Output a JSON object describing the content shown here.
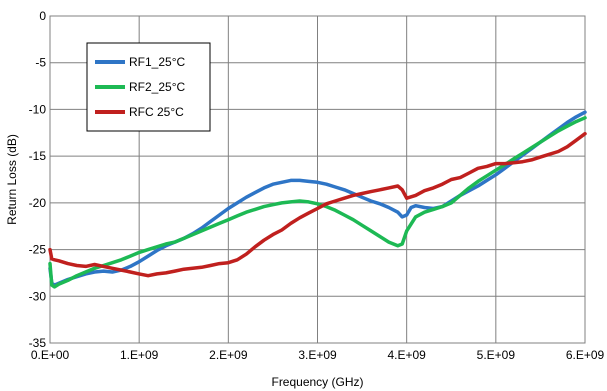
{
  "chart_data": {
    "type": "line",
    "title": "",
    "xlabel": "Frequency (GHz)",
    "ylabel": "Return Loss (dB)",
    "xlim": [
      0,
      6000000000
    ],
    "ylim": [
      -35,
      0
    ],
    "x_ticks": [
      0,
      1000000000,
      2000000000,
      3000000000,
      4000000000,
      5000000000,
      6000000000
    ],
    "x_tick_labels": [
      "0.E+00",
      "1.E+09",
      "2.E+09",
      "3.E+09",
      "4.E+09",
      "5.E+09",
      "6.E+09"
    ],
    "y_ticks": [
      0,
      -5,
      -10,
      -15,
      -20,
      -25,
      -30,
      -35
    ],
    "y_tick_labels": [
      "0",
      "-5",
      "-10",
      "-15",
      "-20",
      "-25",
      "-30",
      "-35"
    ],
    "grid": true,
    "legend": "top-left",
    "series": [
      {
        "name": "RF1_25°C",
        "color": "#2E75C6",
        "x": [
          0,
          20000000,
          50000000,
          100000000,
          200000000,
          300000000,
          400000000,
          500000000,
          600000000,
          700000000,
          800000000,
          900000000,
          1000000000,
          1100000000,
          1200000000,
          1300000000,
          1400000000,
          1500000000,
          1600000000,
          1700000000,
          1800000000,
          1900000000,
          2000000000,
          2100000000,
          2200000000,
          2300000000,
          2400000000,
          2500000000,
          2600000000,
          2700000000,
          2800000000,
          2900000000,
          3000000000,
          3100000000,
          3200000000,
          3300000000,
          3400000000,
          3500000000,
          3600000000,
          3700000000,
          3800000000,
          3900000000,
          3950000000,
          4000000000,
          4050000000,
          4100000000,
          4200000000,
          4300000000,
          4400000000,
          4500000000,
          4600000000,
          4700000000,
          4800000000,
          4900000000,
          5000000000,
          5100000000,
          5200000000,
          5300000000,
          5400000000,
          5500000000,
          5600000000,
          5700000000,
          5800000000,
          5900000000,
          6000000000
        ],
        "y": [
          -27.0,
          -28.6,
          -28.8,
          -28.6,
          -28.2,
          -27.9,
          -27.6,
          -27.4,
          -27.3,
          -27.4,
          -27.2,
          -26.8,
          -26.3,
          -25.7,
          -25.1,
          -24.6,
          -24.2,
          -23.8,
          -23.3,
          -22.7,
          -22.0,
          -21.3,
          -20.6,
          -20.0,
          -19.4,
          -18.9,
          -18.4,
          -18.0,
          -17.8,
          -17.6,
          -17.6,
          -17.7,
          -17.8,
          -18.0,
          -18.3,
          -18.6,
          -19.0,
          -19.4,
          -19.8,
          -20.1,
          -20.5,
          -21.0,
          -21.5,
          -21.3,
          -20.5,
          -20.3,
          -20.5,
          -20.6,
          -20.4,
          -19.8,
          -19.2,
          -18.7,
          -18.2,
          -17.6,
          -17.0,
          -16.3,
          -15.6,
          -14.9,
          -14.2,
          -13.5,
          -12.8,
          -12.1,
          -11.4,
          -10.8,
          -10.3
        ]
      },
      {
        "name": "RF2_25°C",
        "color": "#1DB954",
        "x": [
          0,
          20000000,
          50000000,
          100000000,
          200000000,
          300000000,
          400000000,
          500000000,
          600000000,
          700000000,
          800000000,
          900000000,
          1000000000,
          1100000000,
          1200000000,
          1300000000,
          1400000000,
          1500000000,
          1600000000,
          1700000000,
          1800000000,
          1900000000,
          2000000000,
          2100000000,
          2200000000,
          2300000000,
          2400000000,
          2500000000,
          2600000000,
          2700000000,
          2800000000,
          2900000000,
          3000000000,
          3100000000,
          3200000000,
          3300000000,
          3400000000,
          3500000000,
          3600000000,
          3700000000,
          3800000000,
          3900000000,
          3950000000,
          4000000000,
          4100000000,
          4200000000,
          4300000000,
          4400000000,
          4500000000,
          4600000000,
          4700000000,
          4800000000,
          4900000000,
          5000000000,
          5100000000,
          5200000000,
          5300000000,
          5400000000,
          5500000000,
          5600000000,
          5700000000,
          5800000000,
          5900000000,
          6000000000
        ],
        "y": [
          -26.5,
          -28.8,
          -29.0,
          -28.7,
          -28.3,
          -27.8,
          -27.4,
          -27.0,
          -26.7,
          -26.4,
          -26.1,
          -25.7,
          -25.3,
          -25.0,
          -24.7,
          -24.4,
          -24.2,
          -23.8,
          -23.4,
          -23.0,
          -22.6,
          -22.2,
          -21.8,
          -21.4,
          -21.0,
          -20.7,
          -20.4,
          -20.2,
          -20.0,
          -19.9,
          -19.8,
          -19.9,
          -20.1,
          -20.4,
          -20.8,
          -21.3,
          -21.8,
          -22.4,
          -23.0,
          -23.6,
          -24.2,
          -24.6,
          -24.4,
          -23.0,
          -21.5,
          -21.0,
          -20.7,
          -20.4,
          -20.0,
          -19.2,
          -18.4,
          -17.7,
          -17.1,
          -16.5,
          -15.9,
          -15.3,
          -14.7,
          -14.1,
          -13.5,
          -12.9,
          -12.3,
          -11.8,
          -11.3,
          -10.9
        ]
      },
      {
        "name": "RFC 25°C",
        "color": "#C0201E",
        "x": [
          0,
          20000000,
          50000000,
          100000000,
          200000000,
          300000000,
          400000000,
          500000000,
          600000000,
          700000000,
          800000000,
          900000000,
          1000000000,
          1100000000,
          1200000000,
          1300000000,
          1400000000,
          1500000000,
          1600000000,
          1700000000,
          1800000000,
          1900000000,
          2000000000,
          2100000000,
          2200000000,
          2300000000,
          2400000000,
          2500000000,
          2600000000,
          2700000000,
          2800000000,
          2900000000,
          3000000000,
          3100000000,
          3200000000,
          3300000000,
          3400000000,
          3500000000,
          3600000000,
          3700000000,
          3800000000,
          3900000000,
          3950000000,
          4000000000,
          4100000000,
          4200000000,
          4300000000,
          4400000000,
          4500000000,
          4600000000,
          4700000000,
          4800000000,
          4900000000,
          5000000000,
          5100000000,
          5200000000,
          5300000000,
          5400000000,
          5500000000,
          5600000000,
          5700000000,
          5800000000,
          5900000000,
          6000000000
        ],
        "y": [
          -25.0,
          -26.0,
          -26.1,
          -26.2,
          -26.5,
          -26.7,
          -26.8,
          -26.6,
          -26.8,
          -27.0,
          -27.2,
          -27.4,
          -27.6,
          -27.8,
          -27.6,
          -27.5,
          -27.3,
          -27.1,
          -27.0,
          -26.9,
          -26.7,
          -26.5,
          -26.4,
          -26.1,
          -25.5,
          -24.7,
          -24.0,
          -23.4,
          -22.9,
          -22.2,
          -21.6,
          -21.1,
          -20.6,
          -20.1,
          -19.8,
          -19.5,
          -19.2,
          -19.0,
          -18.8,
          -18.6,
          -18.4,
          -18.2,
          -18.6,
          -19.5,
          -19.2,
          -18.7,
          -18.4,
          -18.0,
          -17.5,
          -17.3,
          -16.8,
          -16.3,
          -16.1,
          -15.8,
          -15.8,
          -15.7,
          -15.6,
          -15.4,
          -15.1,
          -14.8,
          -14.5,
          -14.0,
          -13.3,
          -12.6
        ]
      }
    ]
  }
}
